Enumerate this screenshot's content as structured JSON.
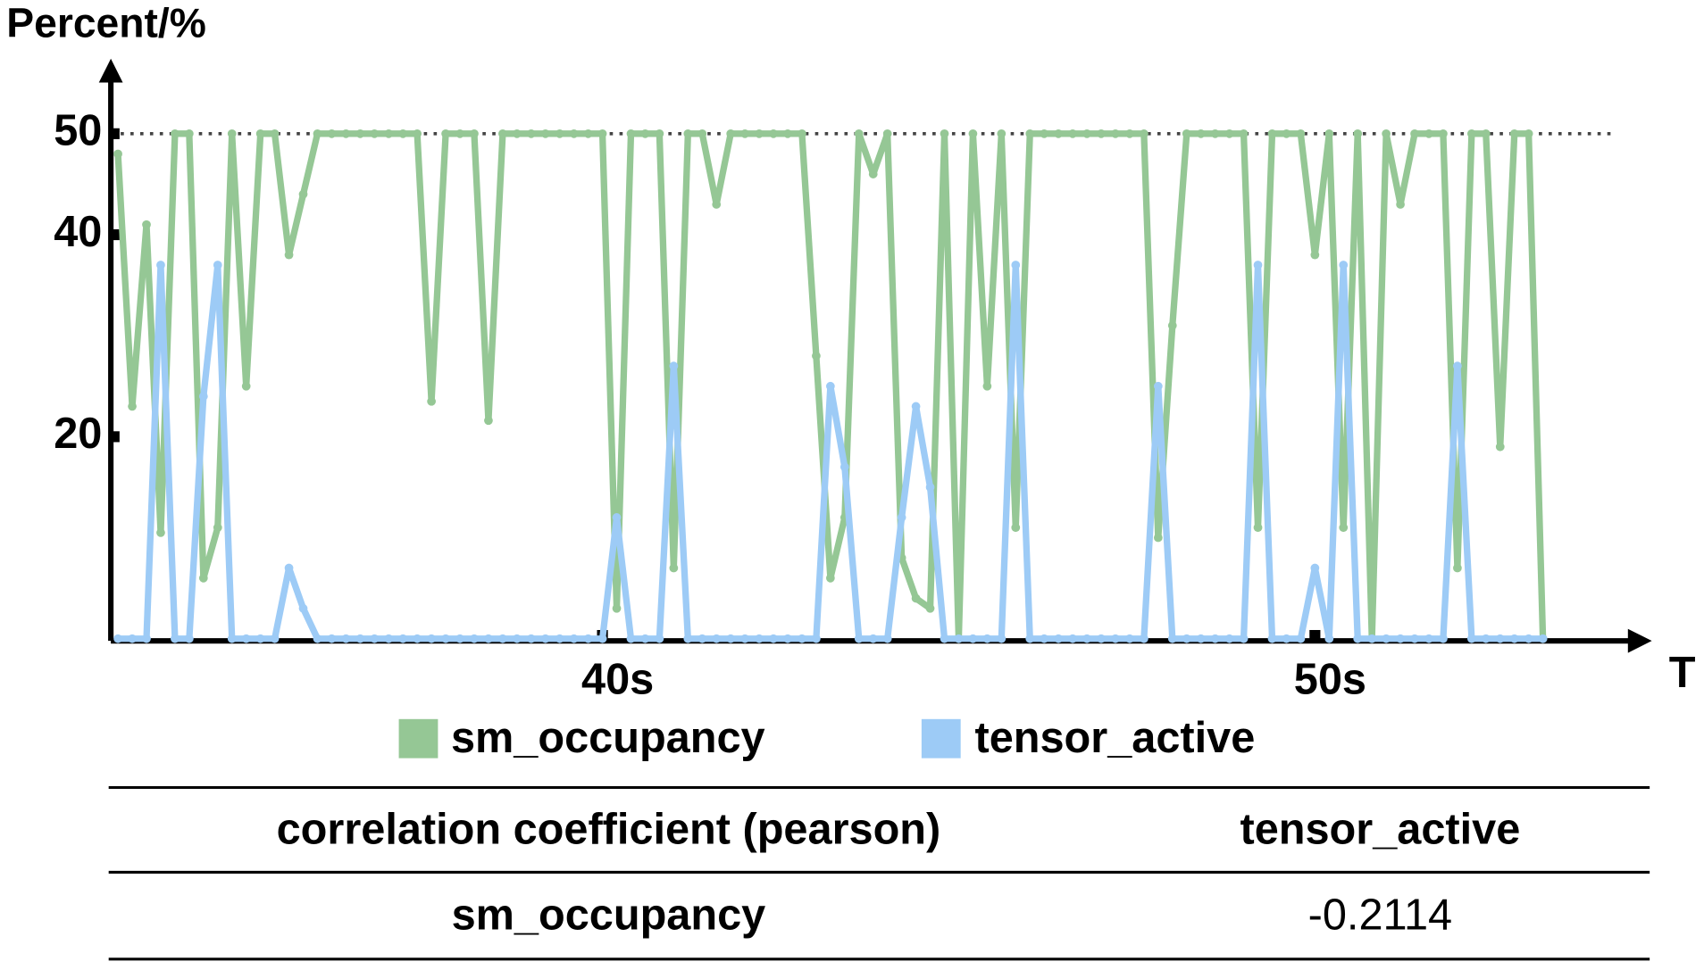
{
  "chart_data": {
    "type": "line",
    "y_label": "Percent/%",
    "x_label": "T",
    "x": [
      33.2,
      33.4,
      33.6,
      33.8,
      34.0,
      34.2,
      34.4,
      34.6,
      34.8,
      35.0,
      35.2,
      35.4,
      35.6,
      35.8,
      36.0,
      36.2,
      36.4,
      36.6,
      36.8,
      37.0,
      37.2,
      37.4,
      37.6,
      37.8,
      38.0,
      38.2,
      38.4,
      38.6,
      38.8,
      39.0,
      39.2,
      39.4,
      39.6,
      39.8,
      40.0,
      40.2,
      40.4,
      40.6,
      40.8,
      41.0,
      41.2,
      41.4,
      41.6,
      41.8,
      42.0,
      42.2,
      42.4,
      42.6,
      42.8,
      43.0,
      43.2,
      43.4,
      43.6,
      43.8,
      44.0,
      44.2,
      44.4,
      44.6,
      44.8,
      45.0,
      45.2,
      45.4,
      45.6,
      45.8,
      46.0,
      46.2,
      46.4,
      46.6,
      46.8,
      47.0,
      47.2,
      47.4,
      47.6,
      47.8,
      48.0,
      48.2,
      48.4,
      48.6,
      48.8,
      49.0,
      49.2,
      49.4,
      49.6,
      49.8,
      50.0,
      50.2,
      50.4,
      50.6,
      50.8,
      51.0,
      51.2,
      51.4,
      51.6,
      51.8,
      52.0,
      52.2,
      52.4,
      52.6,
      52.8,
      53.0,
      53.2
    ],
    "series": [
      {
        "name": "sm_occupancy",
        "color": "#95c795",
        "values": [
          48,
          23,
          41,
          10.5,
          50,
          50,
          6,
          11,
          50,
          25,
          50,
          50,
          38,
          44,
          50,
          50,
          50,
          50,
          50,
          50,
          50,
          50,
          23.5,
          50,
          50,
          50,
          21.6,
          50,
          50,
          50,
          50,
          50,
          50,
          50,
          50,
          3,
          50,
          50,
          50,
          7,
          50,
          50,
          43,
          50,
          50,
          50,
          50,
          50,
          50,
          28,
          6,
          12,
          50,
          46,
          50,
          8,
          4,
          3,
          50,
          0,
          50,
          25,
          50,
          11,
          50,
          50,
          50,
          50,
          50,
          50,
          50,
          50,
          50,
          10,
          31,
          50,
          50,
          50,
          50,
          50,
          11,
          50,
          50,
          50,
          38,
          50,
          11,
          50,
          0,
          50,
          43,
          50,
          50,
          50,
          7,
          50,
          50,
          19,
          50,
          50,
          0
        ]
      },
      {
        "name": "tensor_active",
        "color": "#9dcbf6",
        "values": [
          0,
          0,
          0,
          37,
          0,
          0,
          24,
          37,
          0,
          0,
          0,
          0,
          7,
          3,
          0,
          0,
          0,
          0,
          0,
          0,
          0,
          0,
          0,
          0,
          0,
          0,
          0,
          0,
          0,
          0,
          0,
          0,
          0,
          0,
          0,
          12,
          0,
          0,
          0,
          27,
          0,
          0,
          0,
          0,
          0,
          0,
          0,
          0,
          0,
          0,
          25,
          17,
          0,
          0,
          0,
          12,
          23,
          15,
          0,
          0,
          0,
          0,
          0,
          37,
          0,
          0,
          0,
          0,
          0,
          0,
          0,
          0,
          0,
          25,
          0,
          0,
          0,
          0,
          0,
          0,
          37,
          0,
          0,
          0,
          7,
          0,
          37,
          0,
          0,
          0,
          0,
          0,
          0,
          0,
          27,
          0,
          0,
          0,
          0,
          0,
          0
        ]
      }
    ],
    "xlim": [
      33.1,
      54.5
    ],
    "xticks": [
      {
        "value": 40,
        "label": "40s"
      },
      {
        "value": 50,
        "label": "50s"
      }
    ],
    "ylim": [
      0,
      57
    ],
    "yticks": [
      20,
      40,
      50
    ],
    "reference_line": 50,
    "table": {
      "header": [
        "correlation coefficient (pearson)",
        "tensor_active"
      ],
      "rows": [
        [
          "sm_occupancy",
          "-0.2114"
        ]
      ]
    }
  }
}
